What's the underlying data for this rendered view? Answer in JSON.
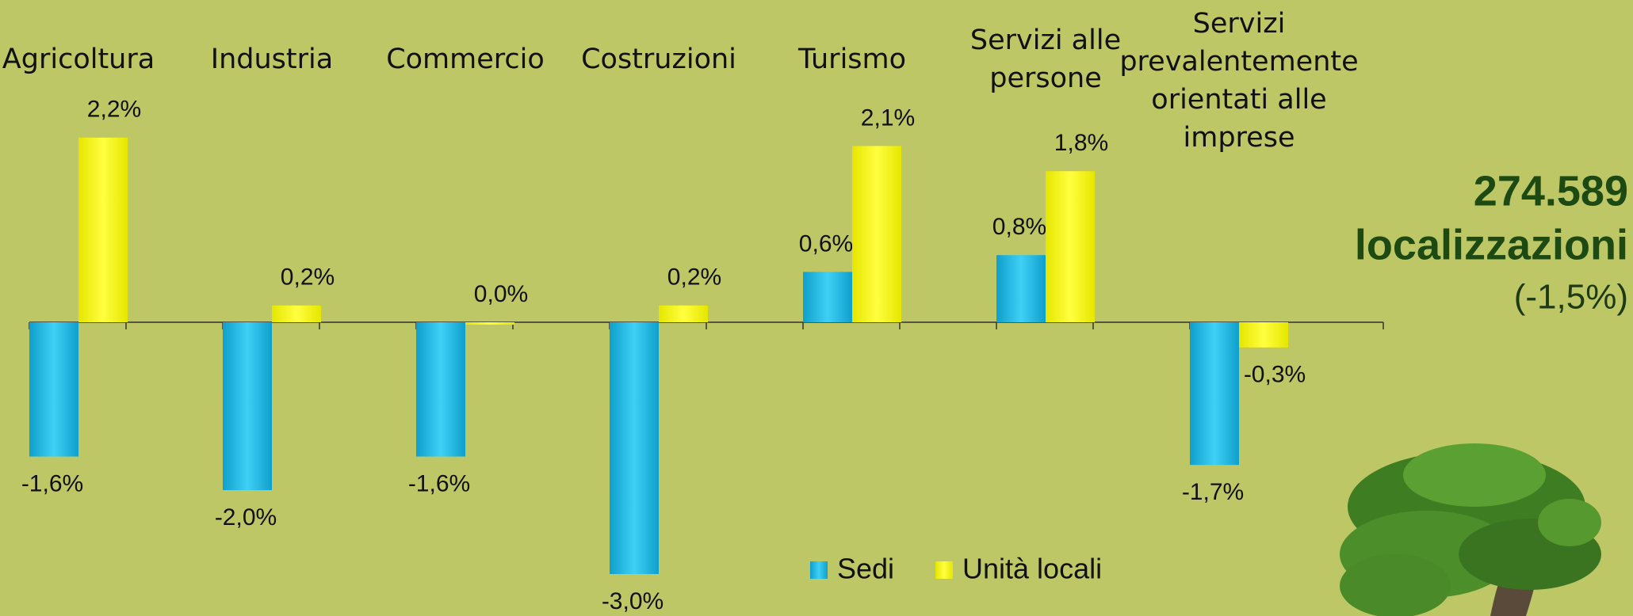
{
  "chart_data": {
    "type": "bar",
    "categories": [
      "Agricoltura",
      "Industria",
      "Commercio",
      "Costruzioni",
      "Turismo",
      "Servizi alle persone",
      "Servizi prevalentemente orientati alle imprese"
    ],
    "series": [
      {
        "name": "Sedi",
        "color": "#18b6e2",
        "values": [
          -1.6,
          -2.0,
          -1.6,
          -3.0,
          0.6,
          0.8,
          -1.7
        ],
        "value_labels": [
          "-1,6%",
          "-2,0%",
          "-1,6%",
          "-3,0%",
          "0,6%",
          "0,8%",
          "-1,7%"
        ]
      },
      {
        "name": "Unità locali",
        "color": "#ffff00",
        "values": [
          2.2,
          0.2,
          0.0,
          0.2,
          2.1,
          1.8,
          -0.3
        ],
        "value_labels": [
          "2,2%",
          "0,2%",
          "0,0%",
          "0,2%",
          "2,1%",
          "1,8%",
          "-0,3%"
        ]
      }
    ],
    "legend": "bottom",
    "annotations": [
      "274.589",
      "localizzazioni",
      "(-1,5%)"
    ]
  }
}
